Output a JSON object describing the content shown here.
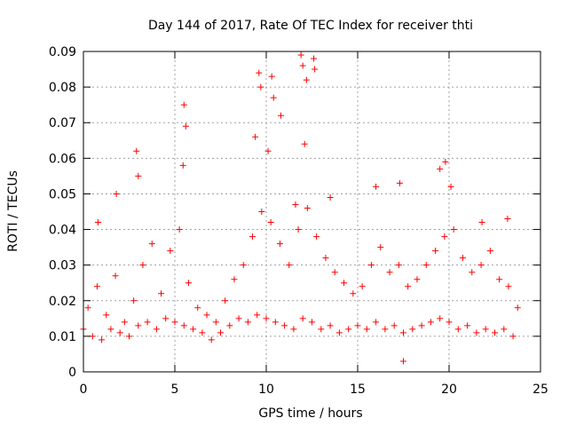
{
  "chart_data": {
    "type": "scatter",
    "title": "Day 144 of 2017, Rate Of TEC Index for receiver thti",
    "xlabel": "GPS time / hours",
    "ylabel": "ROTI / TECUs",
    "xlim": [
      0,
      25
    ],
    "ylim": [
      0,
      0.09
    ],
    "xticks": [
      0,
      5,
      10,
      15,
      20,
      25
    ],
    "yticks": [
      0,
      0.01,
      0.02,
      0.03,
      0.04,
      0.05,
      0.06,
      0.07,
      0.08,
      0.09
    ],
    "xtick_labels": [
      "0",
      "5",
      "10",
      "15",
      "20",
      "25"
    ],
    "ytick_labels": [
      "0",
      "0.01",
      "0.02",
      "0.03",
      "0.04",
      "0.05",
      "0.06",
      "0.07",
      "0.08",
      "0.09"
    ],
    "grid": true,
    "marker": "+",
    "marker_color": "#ff0000",
    "series": [
      {
        "name": "ROTI",
        "x": [
          0.0,
          0.25,
          0.5,
          0.75,
          1.0,
          1.25,
          1.5,
          1.75,
          2.0,
          2.25,
          2.5,
          2.75,
          3.0,
          3.25,
          3.5,
          3.75,
          4.0,
          4.25,
          4.5,
          4.75,
          5.0,
          5.25,
          5.5,
          5.75,
          6.0,
          6.25,
          6.5,
          6.75,
          7.0,
          7.25,
          7.5,
          7.75,
          8.0,
          8.25,
          8.5,
          8.75,
          9.0,
          9.25,
          9.5,
          9.75,
          10.0,
          10.25,
          10.5,
          10.75,
          11.0,
          11.25,
          11.5,
          11.75,
          12.0,
          12.25,
          12.5,
          12.75,
          13.0,
          13.25,
          13.5,
          13.75,
          14.0,
          14.25,
          14.5,
          14.75,
          15.0,
          15.25,
          15.5,
          15.75,
          16.0,
          16.25,
          16.5,
          16.75,
          17.0,
          17.25,
          17.5,
          17.75,
          18.0,
          18.25,
          18.5,
          18.75,
          19.0,
          19.25,
          19.5,
          19.75,
          20.0,
          20.25,
          20.5,
          20.75,
          21.0,
          21.25,
          21.5,
          21.75,
          22.0,
          22.25,
          22.5,
          22.75,
          23.0,
          23.25,
          23.5,
          23.75,
          0.8,
          1.8,
          2.9,
          3.0,
          5.5,
          5.6,
          5.45,
          9.6,
          9.7,
          10.3,
          10.4,
          10.8,
          11.9,
          12.0,
          12.2,
          12.6,
          12.65,
          13.5,
          16.0,
          17.3,
          17.5,
          19.5,
          19.8,
          20.1,
          21.8,
          23.2,
          9.4,
          12.1,
          11.6,
          10.1
        ],
        "y": [
          0.012,
          0.018,
          0.01,
          0.024,
          0.009,
          0.016,
          0.012,
          0.027,
          0.011,
          0.014,
          0.01,
          0.02,
          0.013,
          0.03,
          0.014,
          0.036,
          0.012,
          0.022,
          0.015,
          0.034,
          0.014,
          0.04,
          0.013,
          0.025,
          0.012,
          0.018,
          0.011,
          0.016,
          0.009,
          0.014,
          0.011,
          0.02,
          0.013,
          0.026,
          0.015,
          0.03,
          0.014,
          0.038,
          0.016,
          0.045,
          0.015,
          0.042,
          0.014,
          0.036,
          0.013,
          0.03,
          0.012,
          0.04,
          0.015,
          0.046,
          0.014,
          0.038,
          0.012,
          0.032,
          0.013,
          0.028,
          0.011,
          0.025,
          0.012,
          0.022,
          0.013,
          0.024,
          0.012,
          0.03,
          0.014,
          0.035,
          0.012,
          0.028,
          0.013,
          0.03,
          0.011,
          0.024,
          0.012,
          0.026,
          0.013,
          0.03,
          0.014,
          0.034,
          0.015,
          0.038,
          0.014,
          0.04,
          0.012,
          0.032,
          0.013,
          0.028,
          0.011,
          0.03,
          0.012,
          0.034,
          0.011,
          0.026,
          0.012,
          0.024,
          0.01,
          0.018,
          0.042,
          0.05,
          0.062,
          0.055,
          0.075,
          0.069,
          0.058,
          0.084,
          0.08,
          0.083,
          0.077,
          0.072,
          0.089,
          0.086,
          0.082,
          0.088,
          0.085,
          0.049,
          0.052,
          0.053,
          0.003,
          0.057,
          0.059,
          0.052,
          0.042,
          0.043,
          0.066,
          0.064,
          0.047,
          0.062
        ]
      }
    ]
  }
}
